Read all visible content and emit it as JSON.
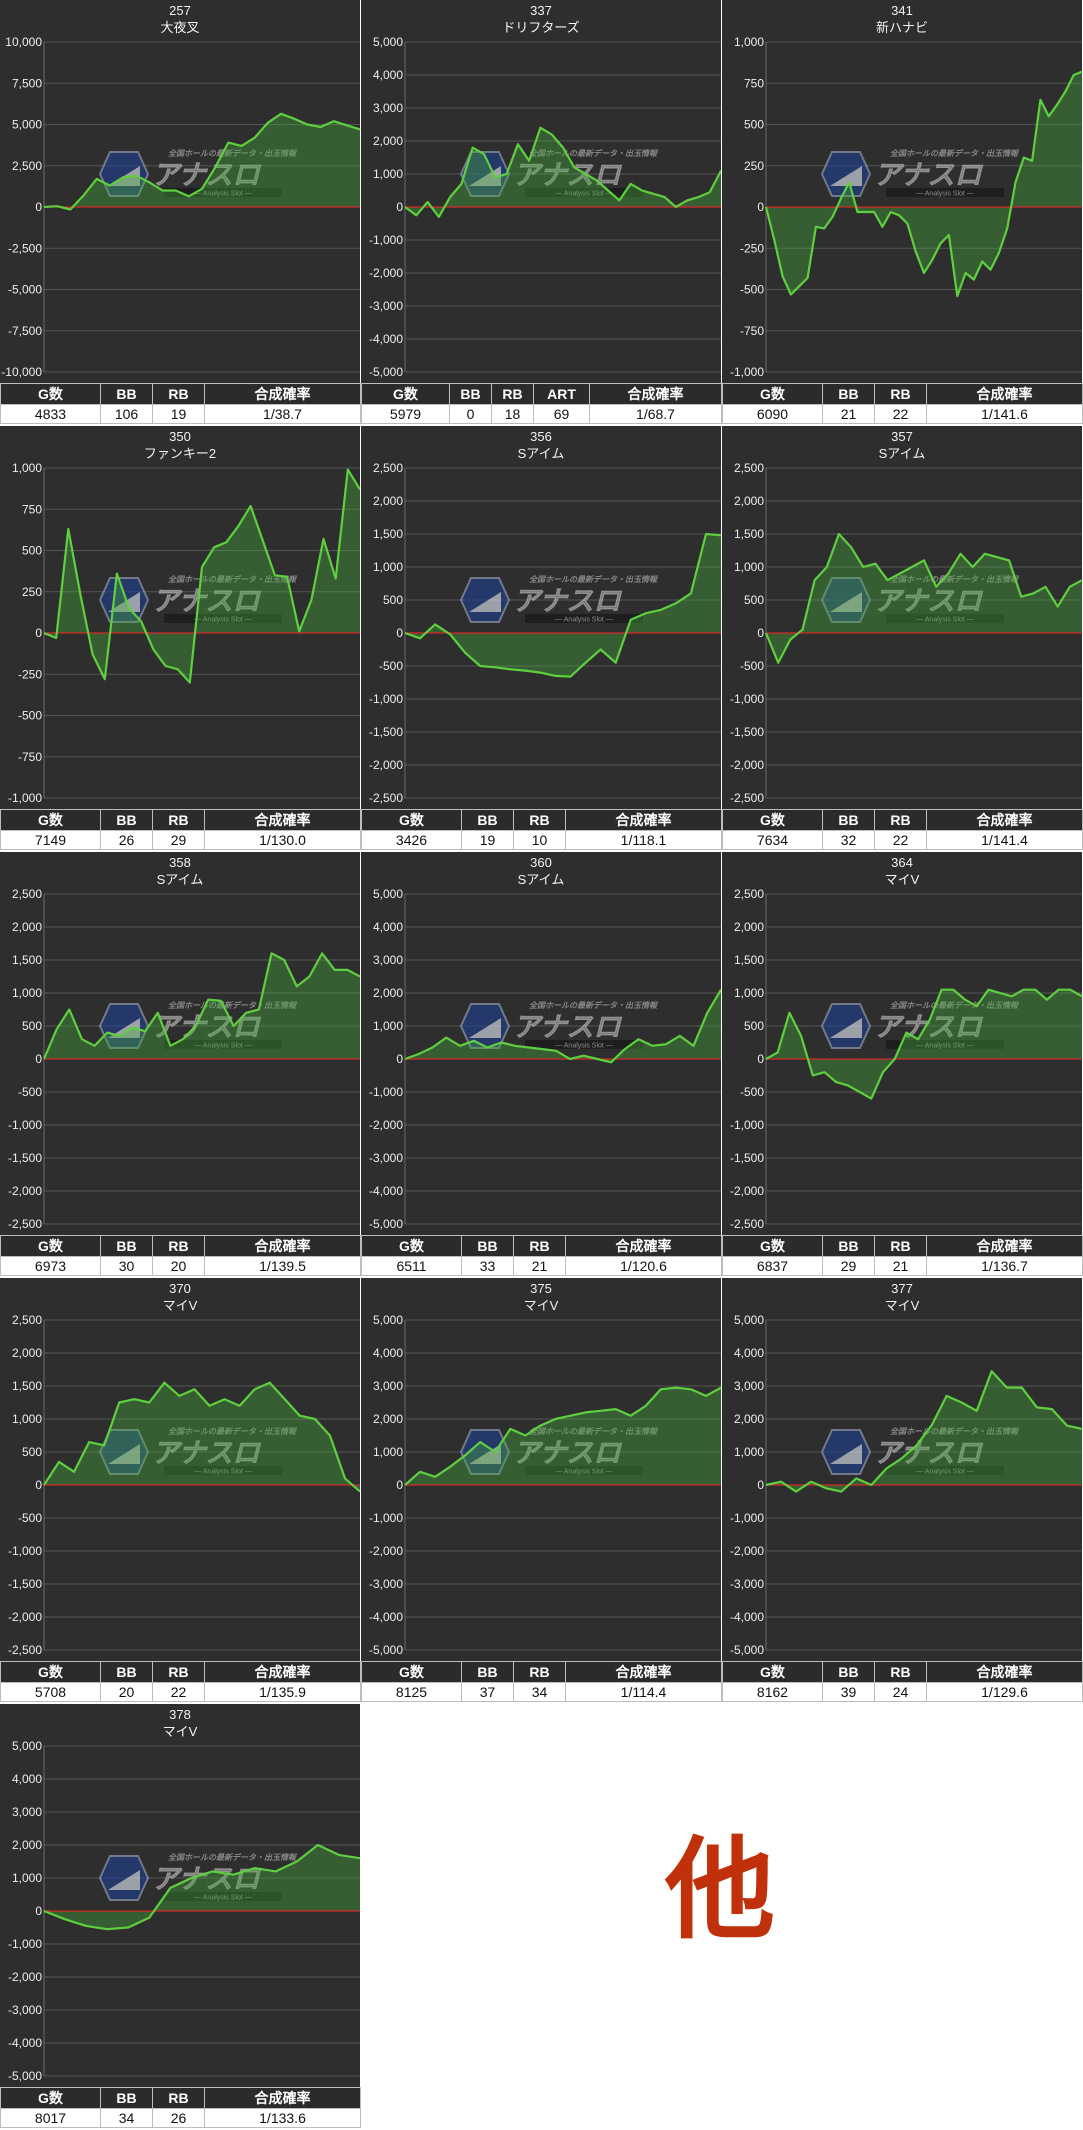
{
  "colors": {
    "panel_bg": "#2e2e2e",
    "line": "#5ecf3e",
    "fill": "rgba(70,170,60,0.38)",
    "zero": "#d42a2a",
    "grid": "#555555",
    "other_text": "#c0300a"
  },
  "watermark": {
    "logo": "アナスロ",
    "tagline": "— Analysis Slot —",
    "top": "全国ホールの最新データ・出玉情報"
  },
  "table_headers": {
    "games": "G数",
    "bb": "BB",
    "rb": "RB",
    "art": "ART",
    "prob": "合成確率"
  },
  "other_label": "他",
  "chart_data": [
    {
      "type": "line",
      "title": "257",
      "subtitle": "大夜叉",
      "ylim": [
        -10000,
        10000
      ],
      "yticks": [
        "10,000",
        "7,500",
        "5,000",
        "2,500",
        "0",
        "-2,500",
        "-5,000",
        "-7,500",
        "-10,000"
      ],
      "y": [
        0,
        50,
        -150,
        700,
        1700,
        1300,
        1800,
        1900,
        1500,
        1000,
        1000,
        650,
        1100,
        2400,
        3900,
        3700,
        4200,
        5100,
        5650,
        5350,
        5000,
        4850,
        5200,
        4950,
        4700
      ],
      "stats": {
        "games": "4833",
        "bb": "106",
        "rb": "19",
        "prob": "1/38.7"
      }
    },
    {
      "type": "line",
      "title": "337",
      "subtitle": "ドリフターズ",
      "ylim": [
        -5000,
        5000
      ],
      "yticks": [
        "5,000",
        "4,000",
        "3,000",
        "2,000",
        "1,000",
        "0",
        "-1,000",
        "-2,000",
        "-3,000",
        "-4,000",
        "-5,000"
      ],
      "y": [
        0,
        -250,
        150,
        -300,
        300,
        700,
        1800,
        1600,
        900,
        1000,
        1900,
        1400,
        2400,
        2200,
        1800,
        1200,
        1000,
        800,
        500,
        200,
        700,
        500,
        400,
        300,
        0,
        200,
        300,
        450,
        1100
      ],
      "stats": {
        "games": "5979",
        "bb": "0",
        "rb": "18",
        "art": "69",
        "prob": "1/68.7"
      }
    },
    {
      "type": "line",
      "title": "341",
      "subtitle": "新ハナビ",
      "ylim": [
        -1000,
        1000
      ],
      "yticks": [
        "1,000",
        "750",
        "500",
        "250",
        "0",
        "-250",
        "-500",
        "-750",
        "-1,000"
      ],
      "y": [
        0,
        -200,
        -420,
        -530,
        -480,
        -430,
        -120,
        -130,
        -60,
        50,
        150,
        -30,
        -30,
        -30,
        -120,
        -30,
        -50,
        -100,
        -270,
        -400,
        -320,
        -220,
        -170,
        -540,
        -400,
        -440,
        -330,
        -380,
        -280,
        -130,
        150,
        300,
        280,
        650,
        550,
        620,
        700,
        800,
        820
      ],
      "stats": {
        "games": "6090",
        "bb": "21",
        "rb": "22",
        "prob": "1/141.6"
      }
    },
    {
      "type": "line",
      "title": "350",
      "subtitle": "ファンキー2",
      "ylim": [
        -1000,
        1000
      ],
      "yticks": [
        "1,000",
        "750",
        "500",
        "250",
        "0",
        "-250",
        "-500",
        "-750",
        "-1,000"
      ],
      "y": [
        0,
        -30,
        630,
        230,
        -130,
        -280,
        360,
        150,
        70,
        -100,
        -200,
        -220,
        -300,
        400,
        520,
        550,
        650,
        770,
        560,
        350,
        340,
        10,
        200,
        570,
        330,
        990,
        870
      ],
      "stats": {
        "games": "7149",
        "bb": "26",
        "rb": "29",
        "prob": "1/130.0"
      }
    },
    {
      "type": "line",
      "title": "356",
      "subtitle": "Sアイム",
      "ylim": [
        -2500,
        2500
      ],
      "yticks": [
        "2,500",
        "2,000",
        "1,500",
        "1,000",
        "500",
        "0",
        "-500",
        "-1,000",
        "-1,500",
        "-2,000",
        "-2,500"
      ],
      "y": [
        0,
        -80,
        130,
        -20,
        -300,
        -500,
        -520,
        -550,
        -570,
        -600,
        -650,
        -660,
        -450,
        -250,
        -450,
        200,
        300,
        350,
        450,
        600,
        1500,
        1480
      ],
      "stats": {
        "games": "3426",
        "bb": "19",
        "rb": "10",
        "prob": "1/118.1"
      }
    },
    {
      "type": "line",
      "title": "357",
      "subtitle": "Sアイム",
      "ylim": [
        -2500,
        2500
      ],
      "yticks": [
        "2,500",
        "2,000",
        "1,500",
        "1,000",
        "500",
        "0",
        "-500",
        "-1,000",
        "-1,500",
        "-2,000",
        "-2,500"
      ],
      "y": [
        0,
        -450,
        -100,
        50,
        800,
        1000,
        1500,
        1300,
        1000,
        1050,
        800,
        900,
        1000,
        1100,
        700,
        900,
        1200,
        1000,
        1200,
        1150,
        1100,
        550,
        600,
        700,
        400,
        700,
        800
      ],
      "stats": {
        "games": "7634",
        "bb": "32",
        "rb": "22",
        "prob": "1/141.4"
      }
    },
    {
      "type": "line",
      "title": "358",
      "subtitle": "Sアイム",
      "ylim": [
        -2500,
        2500
      ],
      "yticks": [
        "2,500",
        "2,000",
        "1,500",
        "1,000",
        "500",
        "0",
        "-500",
        "-1,000",
        "-1,500",
        "-2,000",
        "-2,500"
      ],
      "y": [
        0,
        450,
        750,
        300,
        200,
        400,
        350,
        480,
        420,
        700,
        200,
        300,
        500,
        900,
        880,
        500,
        700,
        750,
        1600,
        1500,
        1100,
        1250,
        1600,
        1350,
        1350,
        1250
      ],
      "stats": {
        "games": "6973",
        "bb": "30",
        "rb": "20",
        "prob": "1/139.5"
      }
    },
    {
      "type": "line",
      "title": "360",
      "subtitle": "Sアイム",
      "ylim": [
        -5000,
        5000
      ],
      "yticks": [
        "5,000",
        "4,000",
        "3,000",
        "2,000",
        "1,000",
        "0",
        "-1,000",
        "-2,000",
        "-3,000",
        "-4,000",
        "-5,000"
      ],
      "y": [
        0,
        150,
        350,
        650,
        400,
        550,
        350,
        500,
        400,
        350,
        300,
        250,
        0,
        100,
        0,
        -100,
        300,
        600,
        400,
        450,
        700,
        400,
        1400,
        2100
      ],
      "stats": {
        "games": "6511",
        "bb": "33",
        "rb": "21",
        "prob": "1/120.6"
      }
    },
    {
      "type": "line",
      "title": "364",
      "subtitle": "マイV",
      "ylim": [
        -2500,
        2500
      ],
      "yticks": [
        "2,500",
        "2,000",
        "1,500",
        "1,000",
        "500",
        "0",
        "-500",
        "-1,000",
        "-1,500",
        "-2,000",
        "-2,500"
      ],
      "y": [
        0,
        100,
        700,
        350,
        -250,
        -200,
        -350,
        -400,
        -500,
        -600,
        -200,
        0,
        400,
        300,
        600,
        1050,
        1050,
        900,
        800,
        1050,
        1000,
        950,
        1050,
        1050,
        900,
        1050,
        1050,
        950
      ],
      "stats": {
        "games": "6837",
        "bb": "29",
        "rb": "21",
        "prob": "1/136.7"
      }
    },
    {
      "type": "line",
      "title": "370",
      "subtitle": "マイV",
      "ylim": [
        -2500,
        2500
      ],
      "yticks": [
        "2,500",
        "2,000",
        "1,500",
        "1,000",
        "500",
        "0",
        "-500",
        "-1,000",
        "-1,500",
        "-2,000",
        "-2,500"
      ],
      "y": [
        0,
        350,
        200,
        650,
        600,
        1250,
        1300,
        1250,
        1550,
        1350,
        1450,
        1200,
        1300,
        1200,
        1450,
        1550,
        1300,
        1050,
        1000,
        750,
        100,
        -100
      ],
      "stats": {
        "games": "5708",
        "bb": "20",
        "rb": "22",
        "prob": "1/135.9"
      }
    },
    {
      "type": "line",
      "title": "375",
      "subtitle": "マイV",
      "ylim": [
        -5000,
        5000
      ],
      "yticks": [
        "5,000",
        "4,000",
        "3,000",
        "2,000",
        "1,000",
        "0",
        "-1,000",
        "-2,000",
        "-3,000",
        "-4,000",
        "-5,000"
      ],
      "y": [
        0,
        400,
        250,
        550,
        900,
        1300,
        1000,
        1700,
        1500,
        1800,
        2000,
        2100,
        2200,
        2250,
        2300,
        2100,
        2400,
        2900,
        2950,
        2900,
        2700,
        2950
      ],
      "stats": {
        "games": "8125",
        "bb": "37",
        "rb": "34",
        "prob": "1/114.4"
      }
    },
    {
      "type": "line",
      "title": "377",
      "subtitle": "マイV",
      "ylim": [
        -5000,
        5000
      ],
      "yticks": [
        "5,000",
        "4,000",
        "3,000",
        "2,000",
        "1,000",
        "0",
        "-1,000",
        "-2,000",
        "-3,000",
        "-4,000",
        "-5,000"
      ],
      "y": [
        0,
        100,
        -200,
        100,
        -100,
        -200,
        200,
        0,
        500,
        800,
        1200,
        1800,
        2700,
        2500,
        2250,
        3450,
        2950,
        2950,
        2350,
        2300,
        1800,
        1700
      ],
      "stats": {
        "games": "8162",
        "bb": "39",
        "rb": "24",
        "prob": "1/129.6"
      }
    },
    {
      "type": "line",
      "title": "378",
      "subtitle": "マイV",
      "ylim": [
        -5000,
        5000
      ],
      "yticks": [
        "5,000",
        "4,000",
        "3,000",
        "2,000",
        "1,000",
        "0",
        "-1,000",
        "-2,000",
        "-3,000",
        "-4,000",
        "-5,000"
      ],
      "y": [
        0,
        -250,
        -450,
        -550,
        -500,
        -200,
        700,
        1000,
        1200,
        1100,
        1300,
        1200,
        1500,
        2000,
        1700,
        1600
      ],
      "stats": {
        "games": "8017",
        "bb": "34",
        "rb": "26",
        "prob": "1/133.6"
      }
    }
  ]
}
